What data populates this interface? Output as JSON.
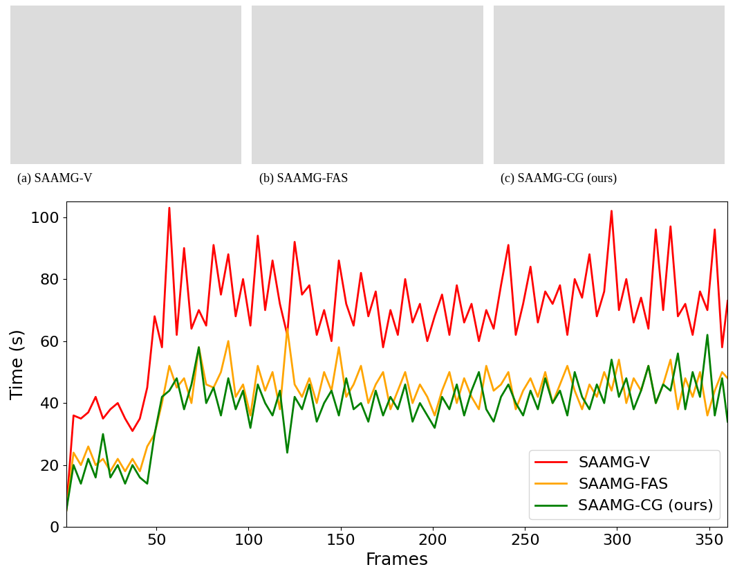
{
  "chart_data": {
    "type": "line",
    "x_label": "Frames",
    "y_label": "Time (s)",
    "x": [
      1,
      5,
      9,
      13,
      17,
      21,
      25,
      29,
      33,
      37,
      41,
      45,
      49,
      53,
      57,
      61,
      65,
      69,
      73,
      77,
      81,
      85,
      89,
      93,
      97,
      101,
      105,
      109,
      113,
      117,
      121,
      125,
      129,
      133,
      137,
      141,
      145,
      149,
      153,
      157,
      161,
      165,
      169,
      173,
      177,
      181,
      185,
      189,
      193,
      197,
      201,
      205,
      209,
      213,
      217,
      221,
      225,
      229,
      233,
      237,
      241,
      245,
      249,
      253,
      257,
      261,
      265,
      269,
      273,
      277,
      281,
      285,
      289,
      293,
      297,
      301,
      305,
      309,
      313,
      317,
      321,
      325,
      329,
      333,
      337,
      341,
      345,
      349,
      353,
      357,
      360
    ],
    "series": [
      {
        "name": "SAAMG-V",
        "color": "#ff0000",
        "values": [
          5,
          36,
          35,
          37,
          42,
          35,
          38,
          40,
          35,
          31,
          35,
          45,
          68,
          58,
          103,
          62,
          90,
          64,
          70,
          65,
          91,
          75,
          88,
          68,
          80,
          65,
          94,
          70,
          86,
          72,
          62,
          92,
          75,
          78,
          62,
          70,
          60,
          86,
          72,
          65,
          82,
          68,
          76,
          58,
          70,
          62,
          80,
          66,
          72,
          60,
          68,
          75,
          62,
          78,
          66,
          72,
          60,
          70,
          64,
          78,
          91,
          62,
          72,
          84,
          66,
          76,
          72,
          78,
          62,
          80,
          74,
          88,
          68,
          76,
          102,
          70,
          80,
          66,
          74,
          64,
          96,
          70,
          97,
          68,
          72,
          62,
          76,
          70,
          96,
          58,
          73
        ]
      },
      {
        "name": "SAAMG-FAS",
        "color": "#ffa500",
        "values": [
          5,
          24,
          20,
          26,
          20,
          22,
          18,
          22,
          18,
          22,
          18,
          26,
          30,
          40,
          52,
          45,
          48,
          40,
          58,
          46,
          45,
          50,
          60,
          42,
          46,
          36,
          52,
          44,
          50,
          38,
          64,
          46,
          42,
          48,
          40,
          50,
          44,
          58,
          42,
          46,
          52,
          40,
          46,
          50,
          38,
          44,
          50,
          40,
          46,
          42,
          36,
          44,
          50,
          40,
          48,
          42,
          38,
          52,
          44,
          46,
          50,
          38,
          44,
          48,
          42,
          50,
          40,
          46,
          52,
          44,
          38,
          46,
          42,
          50,
          44,
          54,
          40,
          48,
          44,
          52,
          40,
          46,
          54,
          38,
          48,
          42,
          50,
          36,
          44,
          50,
          48
        ]
      },
      {
        "name": "SAAMG-CG (ours)",
        "color": "#008000",
        "values": [
          5,
          20,
          14,
          22,
          16,
          30,
          16,
          20,
          14,
          20,
          16,
          14,
          30,
          42,
          44,
          48,
          38,
          46,
          58,
          40,
          45,
          36,
          48,
          38,
          44,
          32,
          46,
          40,
          36,
          44,
          24,
          42,
          38,
          46,
          34,
          40,
          44,
          36,
          48,
          38,
          40,
          34,
          44,
          36,
          42,
          38,
          46,
          34,
          40,
          36,
          32,
          42,
          38,
          46,
          36,
          44,
          50,
          38,
          34,
          42,
          46,
          40,
          36,
          44,
          38,
          48,
          40,
          44,
          36,
          50,
          42,
          38,
          46,
          40,
          54,
          42,
          48,
          38,
          44,
          52,
          40,
          46,
          44,
          56,
          38,
          50,
          42,
          62,
          36,
          48,
          34
        ]
      }
    ],
    "xlim": [
      1,
      360
    ],
    "xticks": [
      50,
      100,
      150,
      200,
      250,
      300,
      350
    ],
    "ylim": [
      0,
      105
    ],
    "yticks": [
      0,
      20,
      40,
      60,
      80,
      100
    ],
    "grid": false,
    "legend": "lower right"
  },
  "image_captions": [
    "(a) SAAMG-V",
    "(b) SAAMG-FAS",
    "(c) SAAMG-CG (ours)"
  ]
}
